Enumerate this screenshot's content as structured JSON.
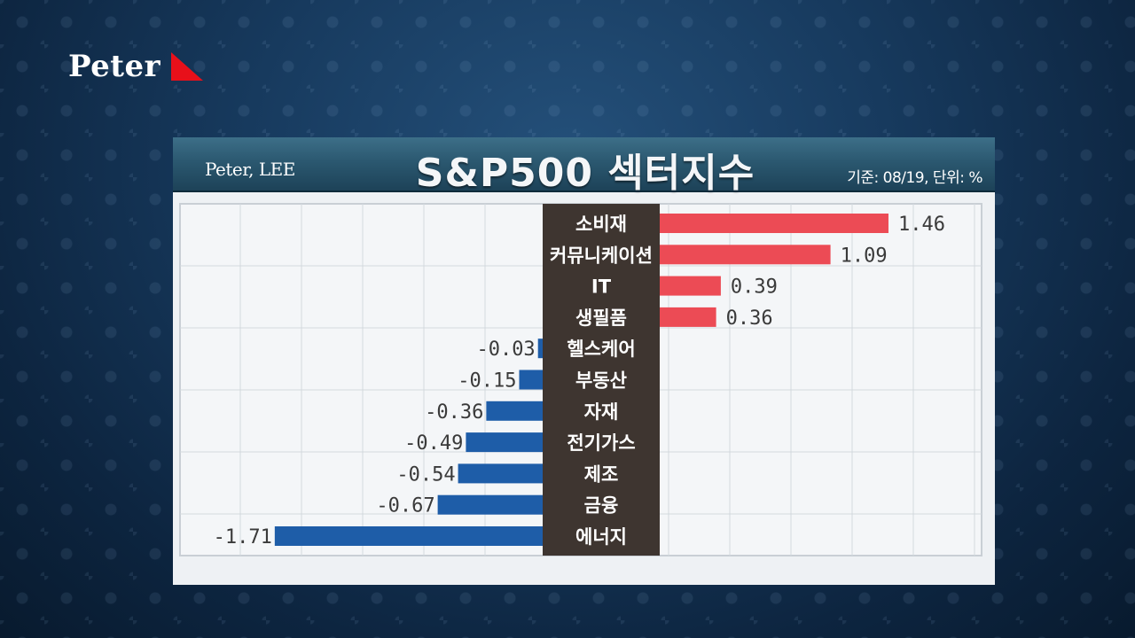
{
  "logo": {
    "text": "Peter"
  },
  "header": {
    "author": "Peter, LEE",
    "title": "S&P500 섹터지수",
    "basis": "기준: 08/19, 단위: %"
  },
  "colors": {
    "positive": "#ec4b55",
    "negative": "#1e5da8",
    "label_band": "#3e3530",
    "logo_accent": "#e8101a"
  },
  "chart_data": {
    "type": "bar",
    "orientation": "horizontal",
    "title": "S&P500 섹터지수",
    "unit": "%",
    "categories": [
      "소비재",
      "커뮤니케이션",
      "IT",
      "생필품",
      "헬스케어",
      "부동산",
      "자재",
      "전기가스",
      "제조",
      "금융",
      "에너지"
    ],
    "values": [
      1.46,
      1.09,
      0.39,
      0.36,
      -0.03,
      -0.15,
      -0.36,
      -0.49,
      -0.54,
      -0.67,
      -1.71
    ],
    "value_labels": [
      "1.46",
      "1.09",
      "0.39",
      "0.36",
      "-0.03",
      "-0.15",
      "-0.36",
      "-0.49",
      "-0.54",
      "-0.67",
      "-1.71"
    ],
    "grid": true
  }
}
